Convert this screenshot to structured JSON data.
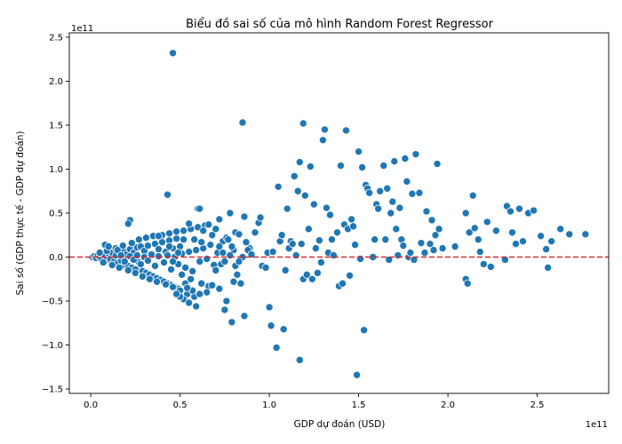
{
  "colors": {
    "point": "#1f77b4",
    "point_edge": "#ffffff",
    "zero_line": "#d62728",
    "axis": "#000000"
  },
  "chart_data": {
    "type": "scatter",
    "title": "Biểu đồ sai số của mô hình Random Forest Regressor",
    "xlabel": "GDP dự đoán (USD)",
    "ylabel": "Sai số (GDP thực tế - GDP dự đoán)",
    "x_offset_label": "1e11",
    "y_offset_label": "1e11",
    "x_scale": 100000000000,
    "y_scale": 100000000000,
    "xlim": [
      -0.12,
      2.9
    ],
    "ylim": [
      -1.55,
      2.55
    ],
    "x_ticks": [
      0.0,
      0.5,
      1.0,
      1.5,
      2.0,
      2.5
    ],
    "x_tick_labels": [
      "0.0",
      "0.5",
      "1.0",
      "1.5",
      "2.0",
      "2.5"
    ],
    "y_ticks": [
      -1.5,
      -1.0,
      -0.5,
      0.0,
      0.5,
      1.0,
      1.5,
      2.0,
      2.5
    ],
    "y_tick_labels": [
      "−1.5",
      "−1.0",
      "−0.5",
      "0.0",
      "0.5",
      "1.0",
      "1.5",
      "2.0",
      "2.5"
    ],
    "reference_line": {
      "y": 0,
      "style": "dashed",
      "color": "#d62728"
    },
    "grid": false,
    "legend": "none",
    "points": [
      [
        0.01,
        0.0
      ],
      [
        0.02,
        0.01
      ],
      [
        0.03,
        -0.01
      ],
      [
        0.04,
        0.02
      ],
      [
        0.05,
        0.0
      ],
      [
        0.06,
        -0.02
      ],
      [
        0.07,
        0.03
      ],
      [
        0.08,
        0.01
      ],
      [
        0.09,
        -0.03
      ],
      [
        0.1,
        0.04
      ],
      [
        0.11,
        -0.02
      ],
      [
        0.12,
        0.05
      ],
      [
        0.13,
        -0.05
      ],
      [
        0.14,
        0.02
      ],
      [
        0.15,
        -0.07
      ],
      [
        0.16,
        0.06
      ],
      [
        0.17,
        -0.04
      ],
      [
        0.18,
        0.08
      ],
      [
        0.19,
        -0.09
      ],
      [
        0.2,
        0.03
      ],
      [
        0.21,
        -0.1
      ],
      [
        0.22,
        0.09
      ],
      [
        0.23,
        -0.12
      ],
      [
        0.24,
        0.05
      ],
      [
        0.25,
        -0.14
      ],
      [
        0.26,
        0.11
      ],
      [
        0.27,
        -0.06
      ],
      [
        0.28,
        0.12
      ],
      [
        0.29,
        -0.16
      ],
      [
        0.3,
        0.07
      ],
      [
        0.31,
        -0.18
      ],
      [
        0.32,
        0.13
      ],
      [
        0.33,
        -0.2
      ],
      [
        0.34,
        0.04
      ],
      [
        0.35,
        -0.22
      ],
      [
        0.36,
        0.15
      ],
      [
        0.37,
        -0.24
      ],
      [
        0.38,
        0.09
      ],
      [
        0.39,
        -0.26
      ],
      [
        0.4,
        0.17
      ],
      [
        0.41,
        -0.28
      ],
      [
        0.42,
        0.06
      ],
      [
        0.43,
        -0.3
      ],
      [
        0.44,
        0.19
      ],
      [
        0.45,
        -0.32
      ],
      [
        0.46,
        0.1
      ],
      [
        0.47,
        -0.34
      ],
      [
        0.48,
        0.21
      ],
      [
        0.49,
        -0.36
      ],
      [
        0.5,
        0.12
      ],
      [
        0.05,
        0.05
      ],
      [
        0.07,
        -0.06
      ],
      [
        0.09,
        0.07
      ],
      [
        0.12,
        -0.09
      ],
      [
        0.14,
        0.1
      ],
      [
        0.16,
        -0.12
      ],
      [
        0.18,
        0.13
      ],
      [
        0.21,
        -0.15
      ],
      [
        0.23,
        0.16
      ],
      [
        0.25,
        -0.18
      ],
      [
        0.27,
        0.2
      ],
      [
        0.29,
        -0.22
      ],
      [
        0.31,
        0.22
      ],
      [
        0.33,
        -0.25
      ],
      [
        0.35,
        0.24
      ],
      [
        0.37,
        -0.28
      ],
      [
        0.4,
        0.25
      ],
      [
        0.42,
        -0.31
      ],
      [
        0.44,
        0.27
      ],
      [
        0.46,
        -0.34
      ],
      [
        0.48,
        0.29
      ],
      [
        0.5,
        -0.38
      ],
      [
        0.52,
        0.3
      ],
      [
        0.54,
        -0.42
      ],
      [
        0.56,
        0.32
      ],
      [
        0.58,
        -0.45
      ],
      [
        0.6,
        0.34
      ],
      [
        0.62,
        -0.3
      ],
      [
        0.64,
        0.36
      ],
      [
        0.66,
        -0.33
      ],
      [
        0.08,
        0.14
      ],
      [
        0.1,
        0.12
      ],
      [
        0.15,
        0.08
      ],
      [
        0.17,
        0.02
      ],
      [
        0.19,
        -0.05
      ],
      [
        0.22,
        0.01
      ],
      [
        0.24,
        -0.03
      ],
      [
        0.26,
        0.02
      ],
      [
        0.28,
        -0.08
      ],
      [
        0.3,
        0.0
      ],
      [
        0.32,
        -0.04
      ],
      [
        0.34,
        0.03
      ],
      [
        0.36,
        -0.1
      ],
      [
        0.38,
        0.01
      ],
      [
        0.41,
        -0.06
      ],
      [
        0.43,
        0.02
      ],
      [
        0.45,
        -0.14
      ],
      [
        0.47,
        0.0
      ],
      [
        0.49,
        -0.08
      ],
      [
        0.51,
        0.04
      ],
      [
        0.53,
        -0.12
      ],
      [
        0.55,
        0.06
      ],
      [
        0.57,
        -0.16
      ],
      [
        0.59,
        0.08
      ],
      [
        0.61,
        -0.05
      ],
      [
        0.63,
        0.1
      ],
      [
        0.65,
        -0.02
      ],
      [
        0.67,
        0.14
      ],
      [
        0.69,
        -0.09
      ],
      [
        0.71,
        0.05
      ],
      [
        0.52,
        -0.48
      ],
      [
        0.55,
        -0.52
      ],
      [
        0.57,
        -0.38
      ],
      [
        0.59,
        -0.56
      ],
      [
        0.61,
        -0.42
      ],
      [
        0.5,
        -0.45
      ],
      [
        0.53,
        -0.3
      ],
      [
        0.48,
        -0.42
      ],
      [
        0.54,
        -0.35
      ],
      [
        0.56,
        -0.25
      ],
      [
        0.6,
        0.55
      ],
      [
        0.63,
        0.3
      ],
      [
        0.66,
        0.37
      ],
      [
        0.68,
        0.25
      ],
      [
        0.7,
        0.32
      ],
      [
        0.72,
        0.43
      ],
      [
        0.74,
        0.18
      ],
      [
        0.76,
        0.22
      ],
      [
        0.78,
        0.5
      ],
      [
        0.8,
        0.08
      ],
      [
        0.65,
        -0.4
      ],
      [
        0.68,
        -0.32
      ],
      [
        0.72,
        -0.36
      ],
      [
        0.75,
        -0.6
      ],
      [
        0.76,
        -0.5
      ],
      [
        0.79,
        -0.74
      ],
      [
        0.8,
        -0.28
      ],
      [
        0.82,
        -0.2
      ],
      [
        0.84,
        -0.3
      ],
      [
        0.86,
        -0.67
      ],
      [
        0.7,
        -0.15
      ],
      [
        0.73,
        -0.08
      ],
      [
        0.75,
        -0.05
      ],
      [
        0.77,
        0.2
      ],
      [
        0.79,
        0.12
      ],
      [
        0.81,
        0.28
      ],
      [
        0.83,
        0.26
      ],
      [
        0.85,
        0.0
      ],
      [
        0.87,
        0.17
      ],
      [
        0.89,
        0.1
      ],
      [
        0.72,
        0.12
      ],
      [
        0.74,
        0.05
      ],
      [
        0.78,
        0.02
      ],
      [
        0.81,
        -0.1
      ],
      [
        0.83,
        -0.05
      ],
      [
        0.86,
        0.46
      ],
      [
        0.88,
        0.08
      ],
      [
        0.9,
        0.03
      ],
      [
        0.92,
        0.28
      ],
      [
        0.94,
        0.39
      ],
      [
        0.95,
        0.45
      ],
      [
        0.96,
        -0.1
      ],
      [
        0.98,
        -0.12
      ],
      [
        0.99,
        0.05
      ],
      [
        1.0,
        -0.57
      ],
      [
        1.01,
        -0.78
      ],
      [
        1.02,
        0.06
      ],
      [
        1.04,
        -1.03
      ],
      [
        1.05,
        0.8
      ],
      [
        1.06,
        0.18
      ],
      [
        1.07,
        0.25
      ],
      [
        1.08,
        -0.82
      ],
      [
        1.09,
        -0.15
      ],
      [
        1.1,
        0.55
      ],
      [
        1.11,
        0.1
      ],
      [
        1.12,
        0.18
      ],
      [
        1.13,
        0.15
      ],
      [
        1.14,
        0.92
      ],
      [
        1.15,
        0.02
      ],
      [
        1.16,
        0.75
      ],
      [
        1.17,
        -1.17
      ],
      [
        1.17,
        1.08
      ],
      [
        1.18,
        0.15
      ],
      [
        1.19,
        -0.25
      ],
      [
        1.19,
        1.52
      ],
      [
        1.2,
        0.7
      ],
      [
        1.21,
        -0.2
      ],
      [
        1.22,
        0.32
      ],
      [
        1.23,
        1.03
      ],
      [
        1.24,
        -0.25
      ],
      [
        1.25,
        0.6
      ],
      [
        1.26,
        0.1
      ],
      [
        1.27,
        -0.18
      ],
      [
        1.28,
        0.19
      ],
      [
        1.29,
        -0.06
      ],
      [
        1.3,
        1.33
      ],
      [
        1.31,
        1.45
      ],
      [
        1.32,
        0.56
      ],
      [
        1.33,
        0.05
      ],
      [
        1.34,
        0.48
      ],
      [
        1.35,
        0.2
      ],
      [
        1.36,
        0.02
      ],
      [
        1.38,
        0.28
      ],
      [
        1.39,
        -0.33
      ],
      [
        1.4,
        1.04
      ],
      [
        1.41,
        -0.3
      ],
      [
        1.42,
        0.37
      ],
      [
        1.43,
        1.44
      ],
      [
        1.44,
        0.32
      ],
      [
        1.45,
        -0.21
      ],
      [
        1.46,
        0.43
      ],
      [
        1.47,
        0.35
      ],
      [
        1.48,
        0.14
      ],
      [
        1.49,
        -1.34
      ],
      [
        1.5,
        1.2
      ],
      [
        1.51,
        -0.02
      ],
      [
        1.52,
        1.02
      ],
      [
        1.53,
        -0.83
      ],
      [
        1.54,
        0.82
      ],
      [
        1.55,
        0.78
      ],
      [
        1.56,
        0.73
      ],
      [
        1.58,
        0.0
      ],
      [
        1.59,
        0.2
      ],
      [
        1.6,
        0.6
      ],
      [
        1.61,
        0.55
      ],
      [
        1.62,
        0.75
      ],
      [
        1.64,
        1.04
      ],
      [
        1.65,
        0.2
      ],
      [
        1.66,
        0.78
      ],
      [
        1.67,
        -0.03
      ],
      [
        1.68,
        0.5
      ],
      [
        1.69,
        0.63
      ],
      [
        1.7,
        1.09
      ],
      [
        1.71,
        0.32
      ],
      [
        1.72,
        0.02
      ],
      [
        1.73,
        0.56
      ],
      [
        1.74,
        0.2
      ],
      [
        1.75,
        0.13
      ],
      [
        1.76,
        1.12
      ],
      [
        1.77,
        0.86
      ],
      [
        1.78,
        0.0
      ],
      [
        1.79,
        0.05
      ],
      [
        1.8,
        0.72
      ],
      [
        1.81,
        -0.03
      ],
      [
        1.82,
        1.17
      ],
      [
        1.84,
        0.73
      ],
      [
        1.85,
        0.16
      ],
      [
        1.87,
        0.05
      ],
      [
        1.88,
        0.52
      ],
      [
        1.9,
        0.15
      ],
      [
        1.91,
        0.42
      ],
      [
        1.92,
        0.08
      ],
      [
        1.93,
        0.25
      ],
      [
        1.94,
        1.06
      ],
      [
        1.95,
        0.32
      ],
      [
        1.97,
        0.1
      ],
      [
        2.04,
        0.12
      ],
      [
        2.1,
        0.5
      ],
      [
        2.1,
        -0.25
      ],
      [
        2.11,
        -0.3
      ],
      [
        2.12,
        0.28
      ],
      [
        2.14,
        0.7
      ],
      [
        2.15,
        0.33
      ],
      [
        2.17,
        0.2
      ],
      [
        2.18,
        0.06
      ],
      [
        2.2,
        -0.08
      ],
      [
        2.22,
        0.4
      ],
      [
        2.24,
        -0.11
      ],
      [
        2.27,
        0.3
      ],
      [
        2.32,
        -0.03
      ],
      [
        2.33,
        0.58
      ],
      [
        2.35,
        0.52
      ],
      [
        2.36,
        0.28
      ],
      [
        2.38,
        0.15
      ],
      [
        2.4,
        0.55
      ],
      [
        2.42,
        0.18
      ],
      [
        2.45,
        0.5
      ],
      [
        2.48,
        0.53
      ],
      [
        2.52,
        0.24
      ],
      [
        2.55,
        0.09
      ],
      [
        2.56,
        -0.12
      ],
      [
        2.58,
        0.18
      ],
      [
        2.63,
        0.32
      ],
      [
        2.68,
        0.26
      ],
      [
        2.77,
        0.26
      ],
      [
        0.46,
        2.32
      ],
      [
        0.85,
        1.53
      ],
      [
        0.43,
        0.71
      ],
      [
        0.61,
        0.55
      ],
      [
        0.22,
        0.42
      ],
      [
        0.21,
        0.38
      ],
      [
        0.38,
        0.24
      ],
      [
        0.55,
        0.38
      ],
      [
        0.62,
        0.17
      ],
      [
        0.58,
        0.2
      ],
      [
        0.52,
        0.2
      ],
      [
        0.49,
        0.05
      ],
      [
        0.44,
        0.12
      ],
      [
        0.46,
        -0.05
      ],
      [
        0.51,
        -0.2
      ]
    ]
  }
}
